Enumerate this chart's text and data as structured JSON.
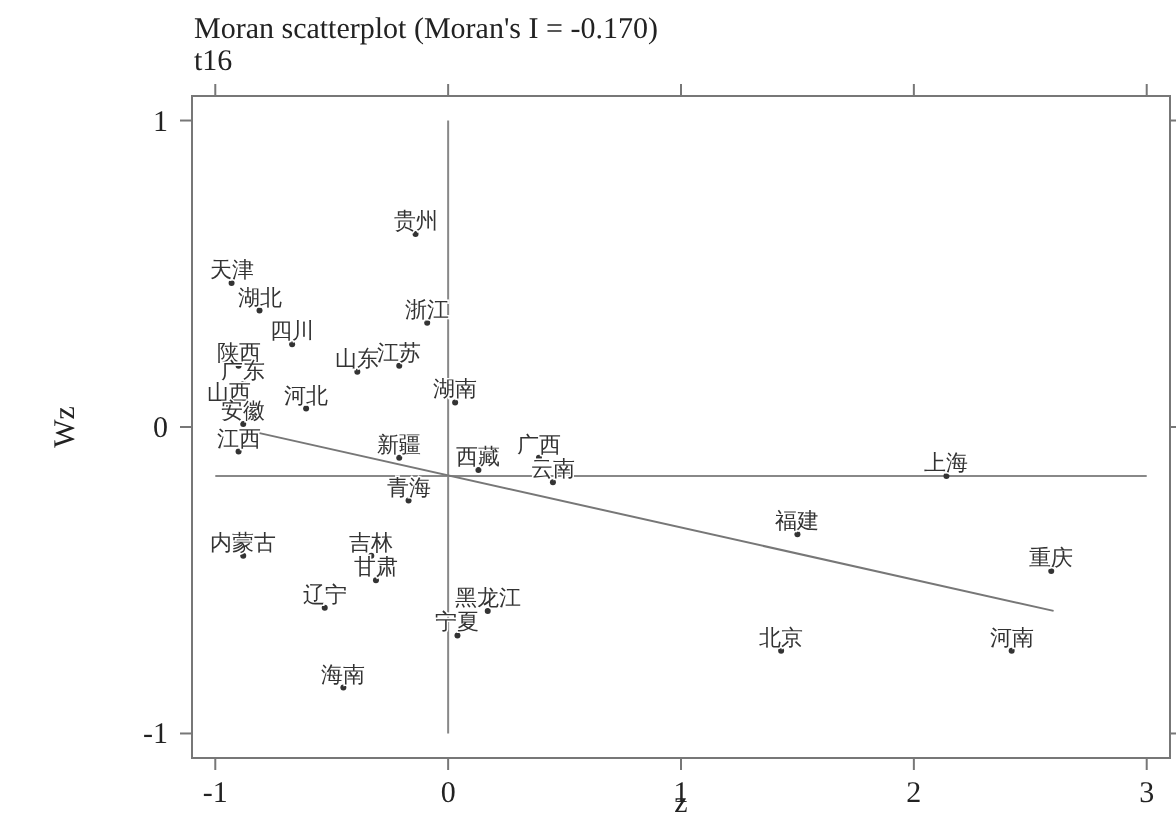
{
  "chart_data": {
    "type": "scatter",
    "title": "Moran scatterplot (Moran's I = -0.170)",
    "subtitle": "t16",
    "xlabel": "z",
    "ylabel": "Wz",
    "xlim": [
      -1.1,
      3.1
    ],
    "ylim": [
      -1.08,
      1.08
    ],
    "xticks": [
      -1,
      0,
      1,
      2,
      3
    ],
    "yticks": [
      -1,
      0,
      1
    ],
    "grid": false,
    "ref_lines": [
      {
        "axis": "x",
        "value": 0,
        "color": "#888888"
      },
      {
        "axis": "y",
        "value": -0.16,
        "color": "#888888"
      }
    ],
    "series": [
      {
        "type": "scatter",
        "marker": "circle",
        "color": "#333333",
        "x": [
          -0.14,
          -0.93,
          -0.81,
          -0.67,
          -0.09,
          -0.9,
          -0.88,
          -0.39,
          -0.21,
          0.03,
          -0.94,
          -0.61,
          -0.88,
          -0.9,
          -0.21,
          0.13,
          0.39,
          0.45,
          -0.17,
          2.14,
          1.5,
          2.59,
          -0.88,
          -0.33,
          -0.31,
          -0.53,
          0.17,
          0.04,
          1.43,
          2.42,
          -0.45
        ],
        "values": [
          0.63,
          0.47,
          0.38,
          0.27,
          0.34,
          0.2,
          0.14,
          0.18,
          0.2,
          0.08,
          0.07,
          0.06,
          0.01,
          -0.08,
          -0.1,
          -0.14,
          -0.1,
          -0.18,
          -0.24,
          -0.16,
          -0.35,
          -0.47,
          -0.42,
          -0.42,
          -0.5,
          -0.59,
          -0.6,
          -0.68,
          -0.73,
          -0.73,
          -0.85
        ],
        "value_labels": [
          "贵州",
          "天津",
          "湖北",
          "四川",
          "浙江",
          "陕西",
          "广东",
          "山东",
          "江苏",
          "湖南",
          "山西",
          "河北",
          "安徽",
          "江西",
          "新疆",
          "西藏",
          "广西",
          "云南",
          "青海",
          "上海",
          "福建",
          "重庆",
          "内蒙古",
          "吉林",
          "甘肃",
          "辽宁",
          "黑龙江",
          "宁夏",
          "北京",
          "河南",
          "海南"
        ]
      },
      {
        "type": "line",
        "color": "#777777",
        "x": [
          -0.81,
          2.6
        ],
        "values": [
          -0.02,
          -0.6
        ]
      }
    ]
  }
}
